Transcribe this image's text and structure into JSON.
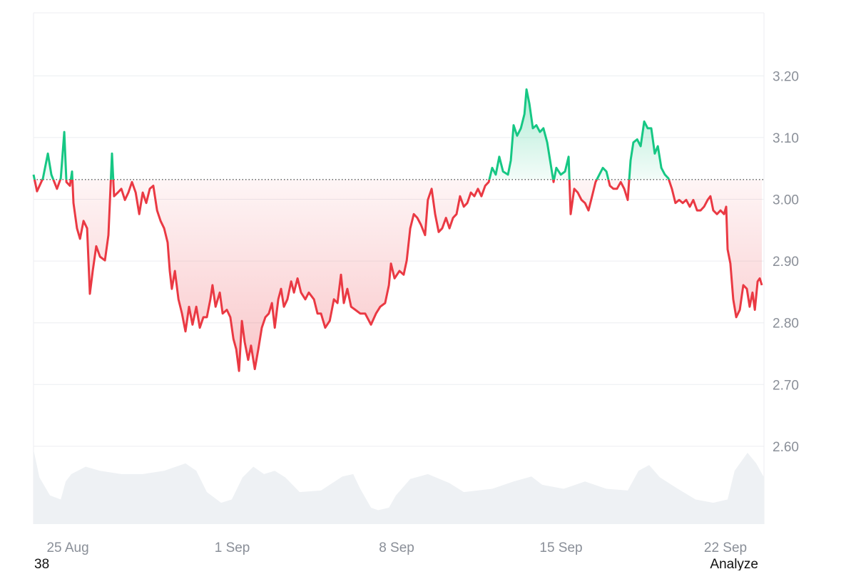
{
  "chart_data": {
    "type": "line",
    "x": [
      -1.46,
      -1.31,
      -1.06,
      -0.85,
      -0.7,
      -0.46,
      -0.3,
      -0.15,
      -0.06,
      0.09,
      0.18,
      0.24,
      0.39,
      0.52,
      0.67,
      0.82,
      0.94,
      1.06,
      1.21,
      1.37,
      1.58,
      1.73,
      1.88,
      1.97,
      2.13,
      2.28,
      2.43,
      2.58,
      2.73,
      2.89,
      3.04,
      3.19,
      3.34,
      3.49,
      3.64,
      3.8,
      3.95,
      4.1,
      4.25,
      4.34,
      4.43,
      4.56,
      4.71,
      4.86,
      5.01,
      5.16,
      5.31,
      5.47,
      5.62,
      5.77,
      5.92,
      6.07,
      6.16,
      6.29,
      6.47,
      6.59,
      6.77,
      6.92,
      7.05,
      7.17,
      7.29,
      7.41,
      7.53,
      7.68,
      7.8,
      7.96,
      8.11,
      8.26,
      8.41,
      8.56,
      8.69,
      8.81,
      8.96,
      9.08,
      9.2,
      9.35,
      9.51,
      9.63,
      9.78,
      9.93,
      10.11,
      10.26,
      10.48,
      10.63,
      10.78,
      10.96,
      11.15,
      11.33,
      11.48,
      11.63,
      11.75,
      11.9,
      12.06,
      12.24,
      12.45,
      12.66,
      12.91,
      13.12,
      13.3,
      13.51,
      13.67,
      13.76,
      13.91,
      14.12,
      14.3,
      14.43,
      14.58,
      14.73,
      14.88,
      15.03,
      15.21,
      15.33,
      15.49,
      15.64,
      15.79,
      15.94,
      16.1,
      16.25,
      16.4,
      16.55,
      16.7,
      16.86,
      17.01,
      17.16,
      17.31,
      17.46,
      17.61,
      17.77,
      17.92,
      18.07,
      18.22,
      18.37,
      18.53,
      18.74,
      18.86,
      18.98,
      19.13,
      19.29,
      19.44,
      19.53,
      19.65,
      19.8,
      19.95,
      20.1,
      20.25,
      20.41,
      20.56,
      20.68,
      20.8,
      20.99,
      21.17,
      21.32,
      21.41,
      21.56,
      21.71,
      21.87,
      22.02,
      22.17,
      22.32,
      22.47,
      22.63,
      22.78,
      22.93,
      23.08,
      23.23,
      23.38,
      23.54,
      23.69,
      23.84,
      23.96,
      24.08,
      24.24,
      24.39,
      24.54,
      24.69,
      24.84,
      24.99,
      25.12,
      25.27,
      25.42,
      25.57,
      25.72,
      25.87,
      26.03,
      26.18,
      26.33,
      26.48,
      26.63,
      26.79,
      26.94,
      27.09,
      27.24,
      27.36,
      27.48,
      27.64,
      27.79,
      27.94,
      28.03,
      28.09,
      28.21,
      28.33,
      28.46,
      28.61,
      28.76,
      28.91,
      29.03,
      29.15,
      29.25,
      29.37,
      29.46,
      29.55
    ],
    "series": [
      {
        "values": [
          3.04,
          3.013,
          3.034,
          3.074,
          3.04,
          3.017,
          3.034,
          3.109,
          3.028,
          3.022,
          3.045,
          2.994,
          2.953,
          2.936,
          2.965,
          2.953,
          2.847,
          2.884,
          2.924,
          2.907,
          2.901,
          2.942,
          3.074,
          3.005,
          3.011,
          3.017,
          2.999,
          3.011,
          3.028,
          3.011,
          2.976,
          3.011,
          2.994,
          3.017,
          3.022,
          2.982,
          2.965,
          2.953,
          2.93,
          2.884,
          2.855,
          2.884,
          2.838,
          2.815,
          2.786,
          2.826,
          2.797,
          2.826,
          2.792,
          2.809,
          2.809,
          2.838,
          2.861,
          2.826,
          2.849,
          2.815,
          2.821,
          2.809,
          2.774,
          2.757,
          2.722,
          2.803,
          2.769,
          2.74,
          2.763,
          2.725,
          2.757,
          2.792,
          2.809,
          2.815,
          2.832,
          2.792,
          2.838,
          2.855,
          2.826,
          2.838,
          2.867,
          2.849,
          2.872,
          2.849,
          2.838,
          2.849,
          2.838,
          2.815,
          2.815,
          2.792,
          2.803,
          2.838,
          2.832,
          2.878,
          2.832,
          2.855,
          2.826,
          2.821,
          2.815,
          2.815,
          2.797,
          2.815,
          2.826,
          2.832,
          2.861,
          2.896,
          2.872,
          2.884,
          2.878,
          2.901,
          2.953,
          2.976,
          2.97,
          2.959,
          2.942,
          2.999,
          3.017,
          2.976,
          2.947,
          2.953,
          2.97,
          2.953,
          2.97,
          2.976,
          3.005,
          2.988,
          2.994,
          3.011,
          3.005,
          3.017,
          3.005,
          3.022,
          3.028,
          3.051,
          3.04,
          3.069,
          3.045,
          3.04,
          3.063,
          3.12,
          3.103,
          3.115,
          3.138,
          3.178,
          3.155,
          3.115,
          3.12,
          3.109,
          3.115,
          3.092,
          3.057,
          3.028,
          3.051,
          3.04,
          3.045,
          3.069,
          2.976,
          3.017,
          3.011,
          2.999,
          2.994,
          2.982,
          3.005,
          3.028,
          3.04,
          3.051,
          3.045,
          3.022,
          3.017,
          3.017,
          3.028,
          3.017,
          2.999,
          3.063,
          3.092,
          3.097,
          3.086,
          3.126,
          3.115,
          3.115,
          3.074,
          3.086,
          3.051,
          3.04,
          3.034,
          3.017,
          2.994,
          2.999,
          2.994,
          2.999,
          2.988,
          2.999,
          2.982,
          2.982,
          2.988,
          2.999,
          3.005,
          2.982,
          2.976,
          2.982,
          2.976,
          2.988,
          2.919,
          2.896,
          2.838,
          2.809,
          2.821,
          2.861,
          2.855,
          2.826,
          2.849,
          2.821,
          2.867,
          2.872,
          2.861
        ]
      }
    ],
    "baseline": 3.032,
    "up_color": "#16c784",
    "down_color": "#ea3943",
    "volume": {
      "x": [
        -1.46,
        -1.21,
        -0.76,
        -0.3,
        -0.09,
        0.15,
        0.76,
        1.37,
        2.28,
        3.19,
        4.1,
        5.01,
        5.47,
        5.92,
        6.53,
        6.98,
        7.44,
        7.9,
        8.35,
        8.81,
        9.26,
        9.87,
        10.78,
        11.69,
        12.15,
        12.45,
        12.91,
        13.21,
        13.67,
        13.97,
        14.58,
        15.33,
        16.25,
        16.86,
        18.07,
        18.98,
        19.74,
        20.19,
        21.11,
        22.02,
        22.93,
        23.84,
        24.3,
        24.75,
        25.21,
        25.97,
        26.73,
        27.48,
        28.09,
        28.39,
        28.94,
        29.31,
        29.64
      ],
      "values": [
        91,
        57,
        35,
        30,
        52,
        61,
        70,
        65,
        61,
        61,
        65,
        74,
        65,
        39,
        26,
        30,
        57,
        70,
        61,
        65,
        57,
        39,
        41,
        58,
        61,
        43,
        20,
        17,
        20,
        35,
        55,
        61,
        50,
        39,
        43,
        52,
        58,
        48,
        43,
        52,
        43,
        41,
        65,
        72,
        57,
        43,
        30,
        26,
        30,
        65,
        87,
        74,
        57
      ],
      "color": "#eef1f4"
    },
    "xlim": [
      -1.46,
      29.64
    ],
    "xticks": [
      {
        "value": 0,
        "label": "25 Aug"
      },
      {
        "value": 7,
        "label": "1 Sep"
      },
      {
        "value": 14,
        "label": "8 Sep"
      },
      {
        "value": 21,
        "label": "15 Sep"
      },
      {
        "value": 28,
        "label": "22 Sep"
      }
    ],
    "ylim": [
      2.474,
      3.302
    ],
    "yticks": [
      {
        "value": 2.6,
        "label": "2.60"
      },
      {
        "value": 2.7,
        "label": "2.70"
      },
      {
        "value": 2.8,
        "label": "2.80"
      },
      {
        "value": 2.9,
        "label": "2.90"
      },
      {
        "value": 3.0,
        "label": "3.00"
      },
      {
        "value": 3.1,
        "label": "3.10"
      },
      {
        "value": 3.2,
        "label": "3.20"
      }
    ],
    "grid": true
  },
  "footer": {
    "left": "38",
    "right": "Analyze"
  }
}
